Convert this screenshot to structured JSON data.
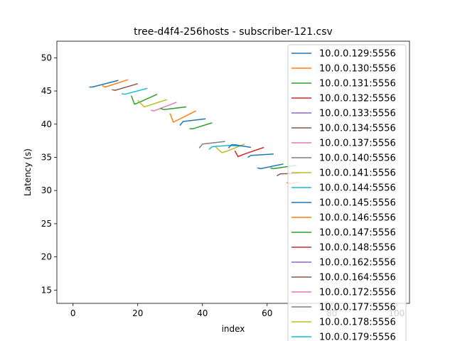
{
  "chart_data": {
    "type": "line",
    "title": "tree-d4f4-256hosts - subscriber-121.csv",
    "xlabel": "index",
    "ylabel": "Latency (s)",
    "xlim": [
      -5,
      104
    ],
    "ylim": [
      13,
      52.5
    ],
    "xticks": [
      0,
      20,
      40,
      60,
      80,
      100
    ],
    "yticks": [
      15,
      20,
      25,
      30,
      35,
      40,
      45,
      50
    ],
    "grid": false,
    "legend_placement": "right, overflowing below the plot",
    "series": [
      {
        "name": "10.0.0.129:5556",
        "color": "#1f77b4",
        "points": [
          [
            5,
            45.6
          ],
          [
            6,
            45.6
          ],
          [
            14,
            46.6
          ]
        ]
      },
      {
        "name": "10.0.0.130:5556",
        "color": "#ff7f0e",
        "points": [
          [
            9,
            45.8
          ],
          [
            10,
            45.6
          ],
          [
            17,
            46.7
          ]
        ]
      },
      {
        "name": "10.0.0.131:5556",
        "color": "#2ca02c",
        "points": [
          [
            18,
            44.3
          ],
          [
            19,
            43.0
          ],
          [
            20,
            43.2
          ],
          [
            26,
            44.5
          ]
        ]
      },
      {
        "name": "10.0.0.132:5556",
        "color": "#d62728",
        "points": [
          [
            50,
            36.0
          ],
          [
            51,
            35.1
          ],
          [
            53,
            35.5
          ],
          [
            59,
            36.5
          ]
        ]
      },
      {
        "name": "10.0.0.133:5556",
        "color": "#9467bd",
        "points": []
      },
      {
        "name": "10.0.0.134:5556",
        "color": "#8c564b",
        "points": [
          [
            12,
            45.2
          ],
          [
            13,
            45.1
          ],
          [
            20,
            46.1
          ]
        ]
      },
      {
        "name": "10.0.0.137:5556",
        "color": "#e377c2",
        "points": [
          [
            24,
            42.1
          ],
          [
            25,
            42.0
          ],
          [
            32,
            43.3
          ]
        ]
      },
      {
        "name": "10.0.0.140:5556",
        "color": "#7f7f7f",
        "points": [
          [
            39,
            36.4
          ],
          [
            40,
            37.0
          ],
          [
            47,
            37.4
          ]
        ]
      },
      {
        "name": "10.0.0.141:5556",
        "color": "#bcbd22",
        "points": [
          [
            20,
            43.6
          ],
          [
            22,
            42.6
          ],
          [
            29,
            43.7
          ]
        ]
      },
      {
        "name": "10.0.0.144:5556",
        "color": "#17becf",
        "points": [
          [
            15,
            44.6
          ],
          [
            16,
            44.5
          ],
          [
            23,
            45.4
          ]
        ]
      },
      {
        "name": "10.0.0.145:5556",
        "color": "#1f77b4",
        "points": [
          [
            33,
            39.8
          ],
          [
            34,
            40.4
          ],
          [
            41,
            40.8
          ]
        ]
      },
      {
        "name": "10.0.0.146:5556",
        "color": "#ff7f0e",
        "points": [
          [
            30,
            41.6
          ],
          [
            31,
            40.3
          ],
          [
            38,
            42.0
          ]
        ]
      },
      {
        "name": "10.0.0.147:5556",
        "color": "#2ca02c",
        "points": [
          [
            27,
            42.4
          ],
          [
            28,
            42.2
          ],
          [
            35,
            42.6
          ]
        ]
      },
      {
        "name": "10.0.0.148:5556",
        "color": "#d62728",
        "points": []
      },
      {
        "name": "10.0.0.162:5556",
        "color": "#9467bd",
        "points": []
      },
      {
        "name": "10.0.0.164:5556",
        "color": "#8c564b",
        "points": [
          [
            63,
            32.2
          ],
          [
            64,
            32.5
          ],
          [
            70,
            32.6
          ]
        ]
      },
      {
        "name": "10.0.0.172:5556",
        "color": "#e377c2",
        "points": []
      },
      {
        "name": "10.0.0.177:5556",
        "color": "#7f7f7f",
        "points": []
      },
      {
        "name": "10.0.0.178:5556",
        "color": "#bcbd22",
        "points": [
          [
            44,
            36.6
          ],
          [
            46,
            35.7
          ],
          [
            48,
            36.0
          ],
          [
            53,
            37.0
          ]
        ]
      },
      {
        "name": "10.0.0.179:5556",
        "color": "#17becf",
        "points": [
          [
            42,
            36.2
          ],
          [
            43,
            36.6
          ],
          [
            48,
            36.8
          ],
          [
            52,
            36.7
          ]
        ]
      }
    ],
    "extra_lines": [
      {
        "color": "#2ca02c",
        "points": [
          [
            36,
            39.3
          ],
          [
            37,
            39.3
          ],
          [
            43,
            40.2
          ]
        ]
      },
      {
        "color": "#1f77b4",
        "points": [
          [
            48,
            36.4
          ],
          [
            49,
            36.9
          ],
          [
            50,
            36.9
          ],
          [
            55,
            36.5
          ]
        ]
      },
      {
        "color": "#1f77b4",
        "points": [
          [
            54,
            35.0
          ],
          [
            55,
            35.3
          ],
          [
            62,
            35.5
          ]
        ]
      },
      {
        "color": "#1f77b4",
        "points": [
          [
            57,
            33.4
          ],
          [
            58,
            33.3
          ],
          [
            65,
            34.0
          ]
        ]
      },
      {
        "color": "#ff7f0e",
        "points": [
          [
            66,
            31.2
          ],
          [
            67,
            31.0
          ],
          [
            70,
            31.3
          ]
        ]
      },
      {
        "color": "#2ca02c",
        "points": [
          [
            61,
            33.4
          ],
          [
            62,
            33.3
          ],
          [
            69,
            33.8
          ]
        ]
      }
    ]
  }
}
